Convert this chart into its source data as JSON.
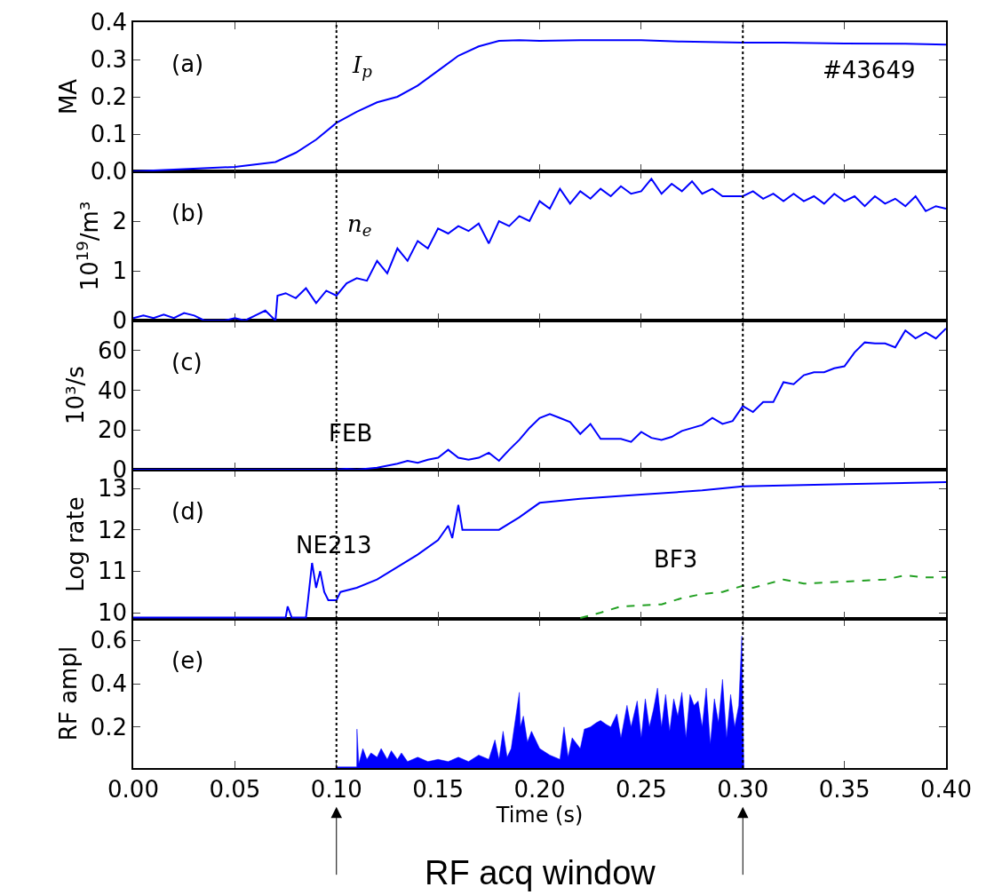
{
  "chart_data": [
    {
      "type": "line",
      "ylabel": "MA",
      "xlim": [
        0,
        0.4
      ],
      "ylim": [
        0,
        0.4
      ],
      "xticks": [
        0,
        0.05,
        0.1,
        0.15,
        0.2,
        0.25,
        0.3,
        0.35,
        0.4
      ],
      "yticks": [
        {
          "value": 0,
          "label": "0.0"
        },
        0.1,
        0.2,
        0.3,
        0.4
      ],
      "tick_labels": "y",
      "grid": false,
      "legend": false,
      "ref_lines": [
        {
          "axis": "x",
          "value": 0.1,
          "color": "#000000",
          "line_style": "dotted"
        },
        {
          "axis": "x",
          "value": 0.3,
          "color": "#000000",
          "line_style": "dotted"
        }
      ],
      "annotations": [
        "(a)",
        "#43649"
      ],
      "series": [
        {
          "name": "I$_{p}$",
          "color": "#0000ff",
          "x": [
            0,
            0.02,
            0.05,
            0.07,
            0.08,
            0.09,
            0.1,
            0.11,
            0.12,
            0.13,
            0.14,
            0.15,
            0.16,
            0.17,
            0.18,
            0.19,
            0.2,
            0.22,
            0.25,
            0.27,
            0.3,
            0.32,
            0.35,
            0.38,
            0.4
          ],
          "values": [
            0,
            0.005,
            0.012,
            0.025,
            0.05,
            0.085,
            0.13,
            0.16,
            0.185,
            0.2,
            0.23,
            0.27,
            0.31,
            0.335,
            0.35,
            0.352,
            0.35,
            0.352,
            0.352,
            0.348,
            0.345,
            0.345,
            0.343,
            0.342,
            0.34
          ]
        }
      ]
    },
    {
      "type": "line",
      "ylabel": "10$^{19}$/m³",
      "xlim": [
        0,
        0.4
      ],
      "ylim": [
        0,
        3
      ],
      "xticks": [
        0,
        0.05,
        0.1,
        0.15,
        0.2,
        0.25,
        0.3,
        0.35,
        0.4
      ],
      "yticks": [
        0,
        1,
        2
      ],
      "tick_labels": "y",
      "grid": false,
      "legend": false,
      "ref_lines": [
        {
          "axis": "x",
          "value": 0.1,
          "color": "#000000",
          "line_style": "dotted"
        },
        {
          "axis": "x",
          "value": 0.3,
          "color": "#000000",
          "line_style": "dotted"
        }
      ],
      "annotations": [
        "(b)"
      ],
      "series": [
        {
          "name": "n$_{e}$",
          "color": "#0000ff",
          "x": [
            0,
            0.005,
            0.01,
            0.015,
            0.02,
            0.025,
            0.03,
            0.035,
            0.045,
            0.05,
            0.055,
            0.06,
            0.065,
            0.07,
            0.071,
            0.075,
            0.08,
            0.085,
            0.09,
            0.095,
            0.1,
            0.105,
            0.11,
            0.115,
            0.12,
            0.125,
            0.13,
            0.135,
            0.14,
            0.145,
            0.15,
            0.155,
            0.16,
            0.165,
            0.17,
            0.175,
            0.18,
            0.185,
            0.19,
            0.195,
            0.2,
            0.205,
            0.21,
            0.215,
            0.22,
            0.225,
            0.23,
            0.235,
            0.24,
            0.245,
            0.25,
            0.255,
            0.26,
            0.265,
            0.27,
            0.275,
            0.28,
            0.285,
            0.29,
            0.3,
            0.305,
            0.31,
            0.315,
            0.32,
            0.325,
            0.33,
            0.335,
            0.34,
            0.345,
            0.35,
            0.355,
            0.36,
            0.365,
            0.37,
            0.375,
            0.38,
            0.385,
            0.39,
            0.395,
            0.4
          ],
          "values": [
            0.05,
            0.1,
            0.05,
            0.12,
            0.05,
            0.15,
            0.1,
            0,
            0,
            0.05,
            0,
            0.1,
            0.2,
            0,
            0.5,
            0.55,
            0.45,
            0.65,
            0.35,
            0.6,
            0.5,
            0.75,
            0.85,
            0.8,
            1.2,
            0.95,
            1.45,
            1.2,
            1.6,
            1.45,
            1.85,
            1.75,
            1.9,
            1.8,
            1.95,
            1.55,
            2.0,
            1.9,
            2.1,
            2.0,
            2.4,
            2.25,
            2.65,
            2.35,
            2.6,
            2.45,
            2.65,
            2.5,
            2.7,
            2.55,
            2.6,
            2.85,
            2.55,
            2.75,
            2.6,
            2.8,
            2.55,
            2.65,
            2.5,
            2.5,
            2.6,
            2.45,
            2.55,
            2.4,
            2.55,
            2.4,
            2.5,
            2.35,
            2.55,
            2.4,
            2.5,
            2.3,
            2.5,
            2.35,
            2.45,
            2.3,
            2.5,
            2.2,
            2.3,
            2.25
          ]
        }
      ]
    },
    {
      "type": "line",
      "ylabel": "10³/s",
      "xlim": [
        0,
        0.4
      ],
      "ylim": [
        0,
        75
      ],
      "xticks": [
        0,
        0.05,
        0.1,
        0.15,
        0.2,
        0.25,
        0.3,
        0.35,
        0.4
      ],
      "yticks": [
        0,
        20,
        40,
        60
      ],
      "tick_labels": "y",
      "grid": false,
      "legend": false,
      "ref_lines": [
        {
          "axis": "x",
          "value": 0.1,
          "color": "#000000",
          "line_style": "dotted"
        },
        {
          "axis": "x",
          "value": 0.3,
          "color": "#000000",
          "line_style": "dotted"
        }
      ],
      "annotations": [
        "(c)"
      ],
      "series": [
        {
          "name": "FEB",
          "color": "#0000ff",
          "x": [
            0,
            0.1,
            0.105,
            0.11,
            0.12,
            0.13,
            0.135,
            0.14,
            0.145,
            0.15,
            0.155,
            0.16,
            0.165,
            0.17,
            0.175,
            0.18,
            0.185,
            0.19,
            0.195,
            0.2,
            0.205,
            0.21,
            0.215,
            0.22,
            0.225,
            0.23,
            0.24,
            0.245,
            0.25,
            0.255,
            0.26,
            0.265,
            0.27,
            0.28,
            0.285,
            0.29,
            0.295,
            0.3,
            0.305,
            0.31,
            0.315,
            0.32,
            0.325,
            0.33,
            0.335,
            0.34,
            0.345,
            0.35,
            0.355,
            0.36,
            0.365,
            0.37,
            0.375,
            0.38,
            0.385,
            0.39,
            0.395,
            0.4
          ],
          "values": [
            0,
            0,
            0.5,
            0,
            1,
            3,
            4.5,
            3.5,
            5,
            6,
            10,
            6,
            5,
            6,
            8.5,
            4.5,
            10,
            15,
            21,
            26,
            28,
            26,
            24,
            18,
            23,
            15.5,
            15.5,
            14,
            19,
            16,
            15,
            16.5,
            19.5,
            22.5,
            26,
            23,
            24.5,
            32,
            29,
            34,
            34,
            44,
            43,
            47.5,
            49,
            49,
            51,
            52,
            59,
            64,
            63.5,
            63.5,
            61.5,
            70,
            66,
            69,
            66,
            71
          ]
        }
      ]
    },
    {
      "type": "line",
      "ylabel": "Log rate",
      "xlim": [
        0,
        0.4
      ],
      "ylim": [
        9.85,
        13.45
      ],
      "xticks": [
        0,
        0.05,
        0.1,
        0.15,
        0.2,
        0.25,
        0.3,
        0.35,
        0.4
      ],
      "yticks": [
        10,
        11,
        12,
        13
      ],
      "tick_labels": "y",
      "grid": false,
      "legend": false,
      "ref_lines": [
        {
          "axis": "x",
          "value": 0.1,
          "color": "#000000",
          "line_style": "dotted"
        },
        {
          "axis": "x",
          "value": 0.3,
          "color": "#000000",
          "line_style": "dotted"
        }
      ],
      "annotations": [
        "(d)"
      ],
      "series": [
        {
          "name": "NE213",
          "color": "#0000ff",
          "line_style": "solid",
          "x": [
            0,
            0.04,
            0.075,
            0.076,
            0.078,
            0.085,
            0.086,
            0.088,
            0.09,
            0.092,
            0.094,
            0.096,
            0.1,
            0.102,
            0.11,
            0.12,
            0.13,
            0.14,
            0.15,
            0.155,
            0.157,
            0.16,
            0.162,
            0.17,
            0.18,
            0.19,
            0.2,
            0.22,
            0.25,
            0.28,
            0.3,
            0.35,
            0.4
          ],
          "values": [
            9.88,
            9.88,
            9.88,
            10.15,
            9.88,
            9.88,
            10.3,
            11.2,
            10.6,
            11.0,
            10.5,
            10.3,
            10.3,
            10.5,
            10.6,
            10.8,
            11.1,
            11.4,
            11.75,
            12.1,
            11.8,
            12.6,
            12.0,
            12.0,
            12.0,
            12.3,
            12.65,
            12.75,
            12.85,
            12.95,
            13.05,
            13.1,
            13.15
          ]
        },
        {
          "name": "BF3",
          "color": "#22a022",
          "line_style": "dashed",
          "x": [
            0.22,
            0.23,
            0.24,
            0.26,
            0.27,
            0.28,
            0.29,
            0.3,
            0.305,
            0.32,
            0.33,
            0.35,
            0.37,
            0.38,
            0.39,
            0.4
          ],
          "values": [
            9.87,
            10.0,
            10.15,
            10.2,
            10.35,
            10.45,
            10.5,
            10.65,
            10.6,
            10.8,
            10.7,
            10.75,
            10.8,
            10.9,
            10.85,
            10.85
          ]
        }
      ]
    },
    {
      "type": "area",
      "ylabel": "RF ampl",
      "xlabel": "Time (s)",
      "xlim": [
        0,
        0.4
      ],
      "ylim": [
        0.01,
        0.7
      ],
      "xticks": [
        {
          "value": 0,
          "label": "0.00"
        },
        0.05,
        {
          "value": 0.1,
          "label": "0.10"
        },
        0.15,
        {
          "value": 0.2,
          "label": "0.20"
        },
        0.25,
        {
          "value": 0.3,
          "label": "0.30"
        },
        0.35,
        {
          "value": 0.4,
          "label": "0.40"
        }
      ],
      "yticks": [
        0.2,
        0.4,
        0.6
      ],
      "grid": false,
      "legend": false,
      "ref_lines": [
        {
          "axis": "x",
          "value": 0.1,
          "color": "#000000",
          "line_style": "dotted"
        },
        {
          "axis": "x",
          "value": 0.3,
          "color": "#000000",
          "line_style": "dotted"
        }
      ],
      "annotations": [
        "(e)",
        "RF acq window"
      ],
      "series": [
        {
          "color": "#0000ff",
          "x": [
            0.1,
            0.11,
            0.1101,
            0.111,
            0.113,
            0.115,
            0.117,
            0.12,
            0.122,
            0.125,
            0.127,
            0.13,
            0.132,
            0.135,
            0.14,
            0.145,
            0.15,
            0.155,
            0.16,
            0.165,
            0.17,
            0.175,
            0.178,
            0.18,
            0.182,
            0.184,
            0.186,
            0.19,
            0.1905,
            0.192,
            0.194,
            0.196,
            0.2,
            0.205,
            0.21,
            0.212,
            0.214,
            0.216,
            0.22,
            0.222,
            0.225,
            0.228,
            0.23,
            0.233,
            0.235,
            0.238,
            0.24,
            0.243,
            0.245,
            0.248,
            0.25,
            0.252,
            0.254,
            0.256,
            0.258,
            0.26,
            0.262,
            0.264,
            0.266,
            0.268,
            0.27,
            0.272,
            0.274,
            0.276,
            0.278,
            0.28,
            0.282,
            0.284,
            0.286,
            0.288,
            0.29,
            0.292,
            0.294,
            0.296,
            0.298,
            0.2995,
            0.3,
            0.3005
          ],
          "values": [
            0.015,
            0.015,
            0.19,
            0.03,
            0.1,
            0.05,
            0.08,
            0.06,
            0.1,
            0.05,
            0.09,
            0.05,
            0.08,
            0.04,
            0.06,
            0.04,
            0.05,
            0.04,
            0.06,
            0.04,
            0.07,
            0.05,
            0.14,
            0.05,
            0.18,
            0.06,
            0.1,
            0.36,
            0.2,
            0.25,
            0.13,
            0.18,
            0.1,
            0.07,
            0.05,
            0.2,
            0.06,
            0.15,
            0.1,
            0.19,
            0.2,
            0.22,
            0.23,
            0.21,
            0.2,
            0.26,
            0.15,
            0.3,
            0.2,
            0.32,
            0.15,
            0.33,
            0.2,
            0.28,
            0.38,
            0.2,
            0.35,
            0.18,
            0.33,
            0.25,
            0.36,
            0.15,
            0.35,
            0.3,
            0.32,
            0.2,
            0.38,
            0.12,
            0.33,
            0.22,
            0.42,
            0.15,
            0.35,
            0.2,
            0.3,
            0.62,
            0.3,
            0.01
          ]
        }
      ]
    }
  ]
}
